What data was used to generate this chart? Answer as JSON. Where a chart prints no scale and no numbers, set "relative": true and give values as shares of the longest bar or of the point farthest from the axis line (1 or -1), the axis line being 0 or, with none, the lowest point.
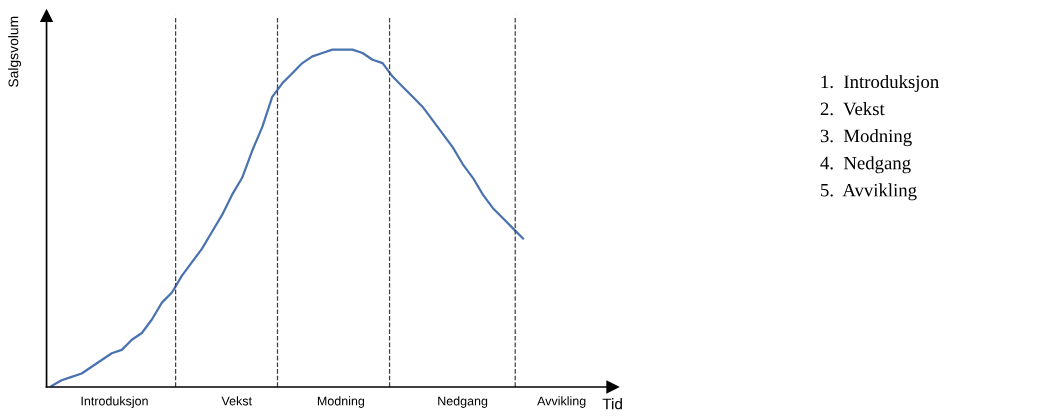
{
  "chart_data": {
    "type": "line",
    "relative": true,
    "xlabel": "Tid",
    "ylabel": "Salgsvolum",
    "categories": [
      null,
      null,
      null,
      null,
      null,
      null,
      null,
      null,
      null,
      null,
      null,
      null,
      null,
      null,
      null,
      null,
      null,
      null,
      null,
      null,
      null,
      null,
      null,
      null,
      null,
      null,
      null,
      null,
      null,
      null,
      null,
      null,
      null,
      null,
      null,
      null,
      null,
      null,
      null,
      null,
      null,
      null,
      null,
      null,
      null,
      null,
      null,
      null
    ],
    "series": [
      {
        "color": "#4a72b0",
        "values": [
          0.003,
          0.02,
          0.03,
          0.04,
          0.06,
          0.08,
          0.1,
          0.11,
          0.14,
          0.16,
          0.2,
          0.25,
          0.28,
          0.33,
          0.37,
          0.41,
          0.46,
          0.51,
          0.57,
          0.62,
          0.7,
          0.77,
          0.86,
          0.9,
          0.93,
          0.96,
          0.98,
          0.99,
          1.0,
          1.0,
          1.0,
          0.99,
          0.97,
          0.96,
          0.92,
          0.89,
          0.86,
          0.83,
          0.79,
          0.75,
          0.71,
          0.66,
          0.62,
          0.57,
          0.53,
          0.5,
          0.47,
          0.44
        ]
      }
    ],
    "annotations": [
      "Introduksjon",
      "Vekst",
      "Modning",
      "Nedgang",
      "Avvikling",
      "1.  Introduksjon",
      "2.  Vekst",
      "3.  Modning",
      "4.  Nedgang",
      "5.  Avvikling"
    ],
    "tick_labels": false,
    "legend": false,
    "line_style": "solid",
    "marker": "none"
  }
}
